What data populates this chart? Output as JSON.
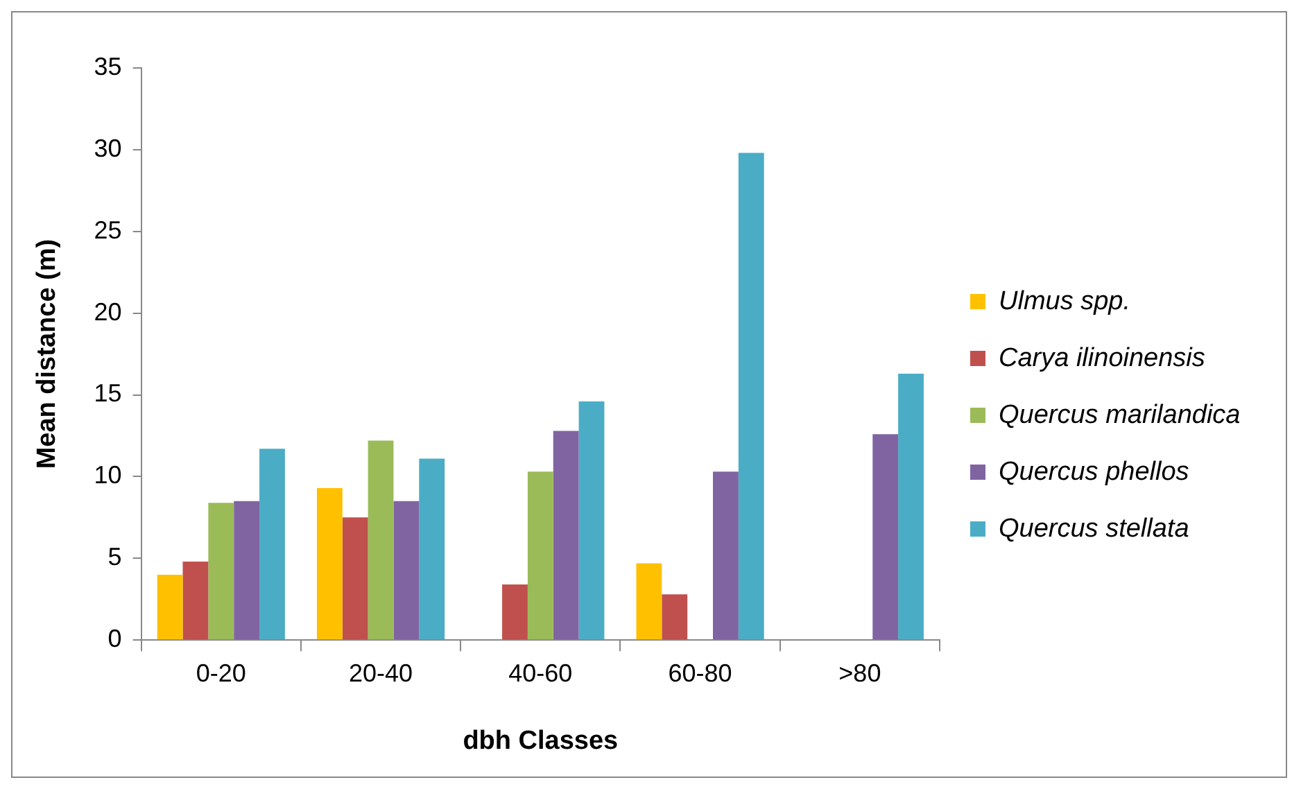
{
  "chart_data": {
    "type": "bar",
    "xlabel": "dbh Classes",
    "ylabel": "Mean distance (m)",
    "categories": [
      "0-20",
      "20-40",
      "40-60",
      "60-80",
      ">80"
    ],
    "series": [
      {
        "name": "Ulmus spp.",
        "color": "#ffc000",
        "values": [
          4.0,
          9.3,
          null,
          4.7,
          null
        ]
      },
      {
        "name": "Carya ilinoinensis",
        "color": "#c0504d",
        "values": [
          4.8,
          7.5,
          3.4,
          2.8,
          null
        ]
      },
      {
        "name": "Quercus marilandica",
        "color": "#9bbb59",
        "values": [
          8.4,
          12.2,
          10.3,
          null,
          null
        ]
      },
      {
        "name": "Quercus phellos",
        "color": "#8064a2",
        "values": [
          8.5,
          8.5,
          12.8,
          10.3,
          12.6
        ]
      },
      {
        "name": "Quercus stellata",
        "color": "#4bacc6",
        "values": [
          11.7,
          11.1,
          14.6,
          29.8,
          16.3
        ]
      }
    ],
    "ylim": [
      0,
      35
    ],
    "yticks": [
      0,
      5,
      10,
      15,
      20,
      25,
      30,
      35
    ],
    "grid": false,
    "legend": "right"
  }
}
